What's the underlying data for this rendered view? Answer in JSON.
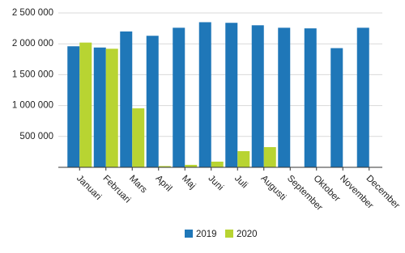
{
  "chart_data": {
    "type": "bar",
    "categories": [
      "Januari",
      "Februari",
      "Mars",
      "April",
      "Maj",
      "Juni",
      "Juli",
      "Augusti",
      "September",
      "Oktober",
      "November",
      "December"
    ],
    "series": [
      {
        "name": "2019",
        "color": "#1f77b8",
        "values": [
          1960000,
          1940000,
          2200000,
          2130000,
          2260000,
          2350000,
          2340000,
          2300000,
          2260000,
          2250000,
          1930000,
          2260000
        ]
      },
      {
        "name": "2020",
        "color": "#b8d432",
        "values": [
          2020000,
          1920000,
          955000,
          20000,
          40000,
          92000,
          262000,
          327000,
          null,
          null,
          null,
          null
        ]
      }
    ],
    "ylim": [
      0,
      2500000
    ],
    "yticks": [
      {
        "value": 500000,
        "label": "500 000"
      },
      {
        "value": 1000000,
        "label": "1 000 000"
      },
      {
        "value": 1500000,
        "label": "1 500 000"
      },
      {
        "value": 2000000,
        "label": "2 000 000"
      },
      {
        "value": 2500000,
        "label": "2 500 000"
      }
    ],
    "grid": true,
    "legend": "bottom"
  }
}
